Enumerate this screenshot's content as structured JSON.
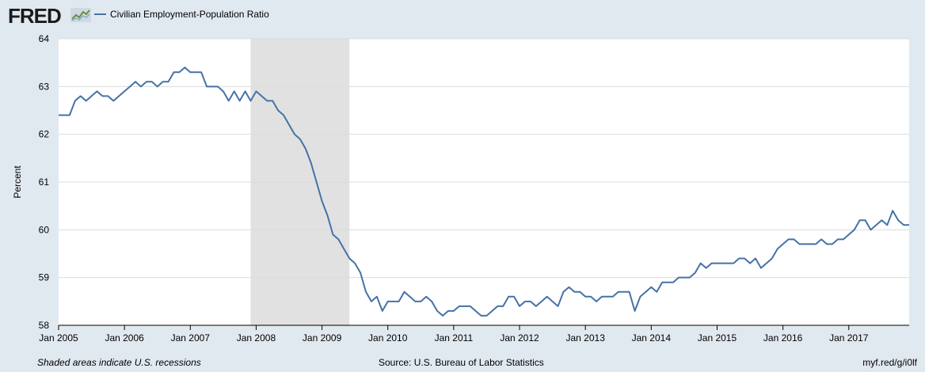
{
  "header": {
    "logo_text": "FRED",
    "series_name": "Civilian Employment-Population Ratio"
  },
  "footer": {
    "note": "Shaded areas indicate U.S. recessions",
    "source": "Source: U.S. Bureau of Labor Statistics",
    "link": "myf.red/g/i0lf"
  },
  "colors": {
    "line": "#4572a7",
    "background": "#e1e9f0",
    "plot": "#ffffff",
    "recession": "#e1e1e1"
  },
  "chart_data": {
    "type": "line",
    "ylabel": "Percent",
    "ylim": [
      58,
      64
    ],
    "yticks": [
      58,
      59,
      60,
      61,
      62,
      63,
      64
    ],
    "xlim": [
      "2005-01",
      "2017-12"
    ],
    "xtick_labels": [
      "Jan 2005",
      "Jan 2006",
      "Jan 2007",
      "Jan 2008",
      "Jan 2009",
      "Jan 2010",
      "Jan 2011",
      "Jan 2012",
      "Jan 2013",
      "Jan 2014",
      "Jan 2015",
      "Jan 2016",
      "Jan 2017"
    ],
    "recessions": [
      {
        "start": "2007-12",
        "end": "2009-06"
      }
    ],
    "grid": true,
    "series": [
      {
        "name": "Civilian Employment-Population Ratio",
        "start": "2005-01",
        "frequency": "monthly",
        "values": [
          62.4,
          62.4,
          62.4,
          62.7,
          62.8,
          62.7,
          62.8,
          62.9,
          62.8,
          62.8,
          62.7,
          62.8,
          62.9,
          63.0,
          63.1,
          63.0,
          63.1,
          63.1,
          63.0,
          63.1,
          63.1,
          63.3,
          63.3,
          63.4,
          63.3,
          63.3,
          63.3,
          63.0,
          63.0,
          63.0,
          62.9,
          62.7,
          62.9,
          62.7,
          62.9,
          62.7,
          62.9,
          62.8,
          62.7,
          62.7,
          62.5,
          62.4,
          62.2,
          62.0,
          61.9,
          61.7,
          61.4,
          61.0,
          60.6,
          60.3,
          59.9,
          59.8,
          59.6,
          59.4,
          59.3,
          59.1,
          58.7,
          58.5,
          58.6,
          58.3,
          58.5,
          58.5,
          58.5,
          58.7,
          58.6,
          58.5,
          58.5,
          58.6,
          58.5,
          58.3,
          58.2,
          58.3,
          58.3,
          58.4,
          58.4,
          58.4,
          58.3,
          58.2,
          58.2,
          58.3,
          58.4,
          58.4,
          58.6,
          58.6,
          58.4,
          58.5,
          58.5,
          58.4,
          58.5,
          58.6,
          58.5,
          58.4,
          58.7,
          58.8,
          58.7,
          58.7,
          58.6,
          58.6,
          58.5,
          58.6,
          58.6,
          58.6,
          58.7,
          58.7,
          58.7,
          58.3,
          58.6,
          58.7,
          58.8,
          58.7,
          58.9,
          58.9,
          58.9,
          59.0,
          59.0,
          59.0,
          59.1,
          59.3,
          59.2,
          59.3,
          59.3,
          59.3,
          59.3,
          59.3,
          59.4,
          59.4,
          59.3,
          59.4,
          59.2,
          59.3,
          59.4,
          59.6,
          59.7,
          59.8,
          59.8,
          59.7,
          59.7,
          59.7,
          59.7,
          59.8,
          59.7,
          59.7,
          59.8,
          59.8,
          59.9,
          60.0,
          60.2,
          60.2,
          60.0,
          60.1,
          60.2,
          60.1,
          60.4,
          60.2,
          60.1,
          60.1
        ]
      }
    ]
  }
}
